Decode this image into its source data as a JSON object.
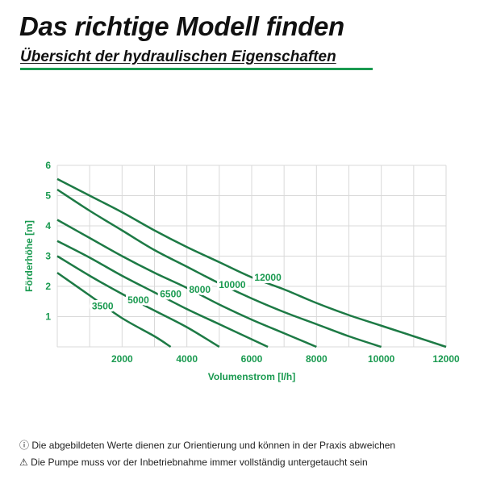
{
  "header": {
    "title": "Das richtige Modell finden",
    "subtitle": "Übersicht der hydraulischen Eigenschaften"
  },
  "colors": {
    "accent": "#1a9a50",
    "curve": "#1d7a45",
    "grid": "#d9d9d9"
  },
  "chart_data": {
    "type": "line",
    "xlabel": "Volumenstrom [l/h]",
    "ylabel": "Förderhöhe [m]",
    "xlim": [
      0,
      12000
    ],
    "ylim": [
      0,
      6
    ],
    "xticks": [
      2000,
      4000,
      6000,
      8000,
      10000,
      12000
    ],
    "yticks": [
      1,
      2,
      3,
      4,
      5,
      6
    ],
    "grid": true,
    "series": [
      {
        "name": "3500",
        "x": [
          0,
          1000,
          2000,
          3000,
          3500
        ],
        "y": [
          2.45,
          1.7,
          0.95,
          0.35,
          0
        ],
        "label_at": [
          1400,
          1.35
        ]
      },
      {
        "name": "5000",
        "x": [
          0,
          1000,
          2000,
          3000,
          4000,
          5000
        ],
        "y": [
          3.0,
          2.35,
          1.75,
          1.2,
          0.65,
          0
        ],
        "label_at": [
          2500,
          1.55
        ]
      },
      {
        "name": "6500",
        "x": [
          0,
          1000,
          2000,
          3000,
          4000,
          5000,
          6000,
          6500
        ],
        "y": [
          3.5,
          2.95,
          2.35,
          1.8,
          1.25,
          0.75,
          0.25,
          0
        ],
        "label_at": [
          3500,
          1.75
        ]
      },
      {
        "name": "8000",
        "x": [
          0,
          1000,
          2000,
          3000,
          4000,
          5000,
          6000,
          7000,
          8000
        ],
        "y": [
          4.2,
          3.6,
          3.0,
          2.45,
          1.95,
          1.4,
          0.9,
          0.45,
          0
        ],
        "label_at": [
          4400,
          1.9
        ]
      },
      {
        "name": "10000",
        "x": [
          0,
          1000,
          2000,
          3000,
          4000,
          5000,
          6000,
          7000,
          8000,
          9000,
          10000
        ],
        "y": [
          5.2,
          4.5,
          3.85,
          3.2,
          2.65,
          2.1,
          1.6,
          1.15,
          0.75,
          0.35,
          0
        ],
        "label_at": [
          5400,
          2.05
        ]
      },
      {
        "name": "12000",
        "x": [
          0,
          1000,
          2000,
          3000,
          4000,
          5000,
          6000,
          7000,
          8000,
          9000,
          10000,
          11000,
          12000
        ],
        "y": [
          5.55,
          5.0,
          4.45,
          3.85,
          3.3,
          2.8,
          2.3,
          1.9,
          1.45,
          1.05,
          0.7,
          0.35,
          0
        ],
        "label_at": [
          6500,
          2.3
        ]
      }
    ]
  },
  "notes": [
    {
      "icon": "info-icon",
      "symbol": "ⓘ",
      "text": "Die abgebildeten Werte dienen zur Orientierung und können in der Praxis abweichen"
    },
    {
      "icon": "warning-icon",
      "symbol": "⚠",
      "text": "Die Pumpe muss vor der Inbetriebnahme immer vollständig untergetaucht sein"
    }
  ]
}
